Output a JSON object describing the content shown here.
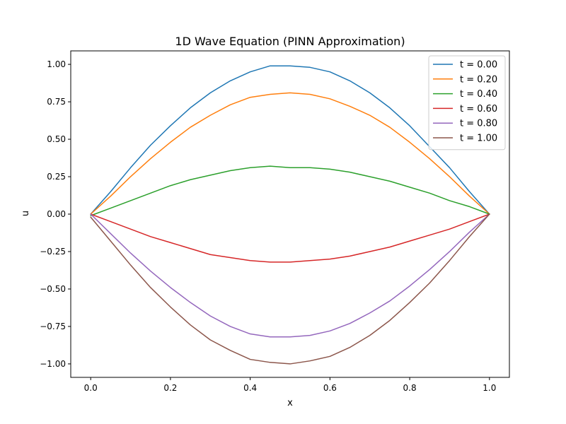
{
  "chart_data": {
    "type": "line",
    "title": "1D Wave Equation (PINN Approximation)",
    "xlabel": "x",
    "ylabel": "u",
    "xlim": [
      -0.05,
      1.05
    ],
    "ylim": [
      -1.09,
      1.09
    ],
    "xticks": [
      0.0,
      0.2,
      0.4,
      0.6,
      0.8,
      1.0
    ],
    "xtick_labels": [
      "0.0",
      "0.2",
      "0.4",
      "0.6",
      "0.8",
      "1.0"
    ],
    "yticks": [
      1.0,
      0.75,
      0.5,
      0.25,
      0.0,
      -0.25,
      -0.5,
      -0.75,
      -1.0
    ],
    "ytick_labels": [
      "1.00",
      "0.75",
      "0.50",
      "0.25",
      "0.00",
      "−0.25",
      "−0.50",
      "−0.75",
      "−1.00"
    ],
    "grid": false,
    "legend_position": "top-right",
    "x": [
      0.0,
      0.05,
      0.1,
      0.15,
      0.2,
      0.25,
      0.3,
      0.35,
      0.4,
      0.45,
      0.5,
      0.55,
      0.6,
      0.65,
      0.7,
      0.75,
      0.8,
      0.85,
      0.9,
      0.95,
      1.0
    ],
    "series": [
      {
        "name": "t = 0.00",
        "color": "#1f77b4",
        "values": [
          0.0,
          0.15,
          0.31,
          0.46,
          0.59,
          0.71,
          0.81,
          0.89,
          0.95,
          0.99,
          0.99,
          0.98,
          0.95,
          0.89,
          0.81,
          0.71,
          0.59,
          0.45,
          0.31,
          0.15,
          0.0
        ]
      },
      {
        "name": "t = 0.20",
        "color": "#ff7f0e",
        "values": [
          0.0,
          0.12,
          0.25,
          0.37,
          0.48,
          0.58,
          0.66,
          0.73,
          0.78,
          0.8,
          0.81,
          0.8,
          0.77,
          0.72,
          0.66,
          0.58,
          0.48,
          0.37,
          0.25,
          0.12,
          0.0
        ]
      },
      {
        "name": "t = 0.40",
        "color": "#2ca02c",
        "values": [
          -0.01,
          0.04,
          0.09,
          0.14,
          0.19,
          0.23,
          0.26,
          0.29,
          0.31,
          0.32,
          0.31,
          0.31,
          0.3,
          0.28,
          0.25,
          0.22,
          0.18,
          0.14,
          0.09,
          0.05,
          0.0
        ]
      },
      {
        "name": "t = 0.60",
        "color": "#d62728",
        "values": [
          0.0,
          -0.05,
          -0.1,
          -0.15,
          -0.19,
          -0.23,
          -0.27,
          -0.29,
          -0.31,
          -0.32,
          -0.32,
          -0.31,
          -0.3,
          -0.28,
          -0.25,
          -0.22,
          -0.18,
          -0.14,
          -0.1,
          -0.05,
          0.0
        ]
      },
      {
        "name": "t = 0.80",
        "color": "#9467bd",
        "values": [
          0.0,
          -0.13,
          -0.26,
          -0.38,
          -0.49,
          -0.59,
          -0.68,
          -0.75,
          -0.8,
          -0.82,
          -0.82,
          -0.81,
          -0.78,
          -0.73,
          -0.66,
          -0.58,
          -0.48,
          -0.37,
          -0.25,
          -0.12,
          0.0
        ]
      },
      {
        "name": "t = 1.00",
        "color": "#8c564b",
        "values": [
          -0.02,
          -0.18,
          -0.34,
          -0.49,
          -0.62,
          -0.74,
          -0.84,
          -0.91,
          -0.97,
          -0.99,
          -1.0,
          -0.98,
          -0.95,
          -0.89,
          -0.81,
          -0.71,
          -0.59,
          -0.46,
          -0.31,
          -0.15,
          0.0
        ]
      }
    ]
  }
}
